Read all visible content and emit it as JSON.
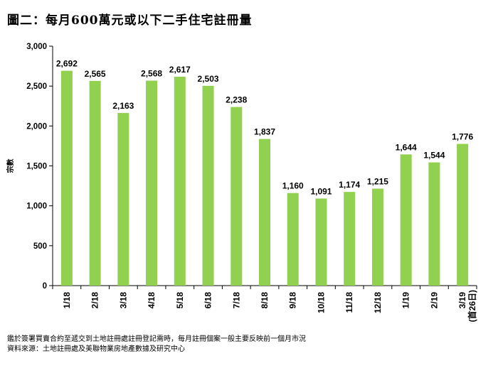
{
  "title": "圖二：每月600萬元或以下二手住宅註冊量",
  "chart_data": {
    "type": "bar",
    "title": "圖二：每月600萬元或以下二手住宅註冊量",
    "xlabel": "",
    "ylabel": "宗數",
    "ylim": [
      0,
      3000
    ],
    "yticks": [
      "0",
      "500",
      "1,000",
      "1,500",
      "2,000",
      "2,500",
      "3,000"
    ],
    "ytick_values": [
      0,
      500,
      1000,
      1500,
      2000,
      2500,
      3000
    ],
    "categories": [
      "1/18",
      "2/18",
      "3/18",
      "4/18",
      "5/18",
      "6/18",
      "7/18",
      "8/18",
      "9/18",
      "10/18",
      "11/18",
      "12/18",
      "1/19",
      "2/19",
      "3/19"
    ],
    "category_notes": [
      "",
      "",
      "",
      "",
      "",
      "",
      "",
      "",
      "",
      "",
      "",
      "",
      "",
      "",
      "(首26日)"
    ],
    "values": [
      2692,
      2565,
      2163,
      2568,
      2617,
      2503,
      2238,
      1837,
      1160,
      1091,
      1174,
      1215,
      1644,
      1544,
      1776
    ],
    "value_labels": [
      "2,692",
      "2,565",
      "2,163",
      "2,568",
      "2,617",
      "2,503",
      "2,238",
      "1,837",
      "1,160",
      "1,091",
      "1,174",
      "1,215",
      "1,644",
      "1,544",
      "1,776"
    ],
    "grid": false,
    "legend": "none",
    "bar_color": "#92d050"
  },
  "footnotes": [
    "鑑於簽署買賣合約至遞交到土地註冊處註冊登記需時，每月註冊個案一般主要反映前一個月市況",
    "資料來源：土地註冊處及美聯物業房地產數據及研究中心"
  ]
}
